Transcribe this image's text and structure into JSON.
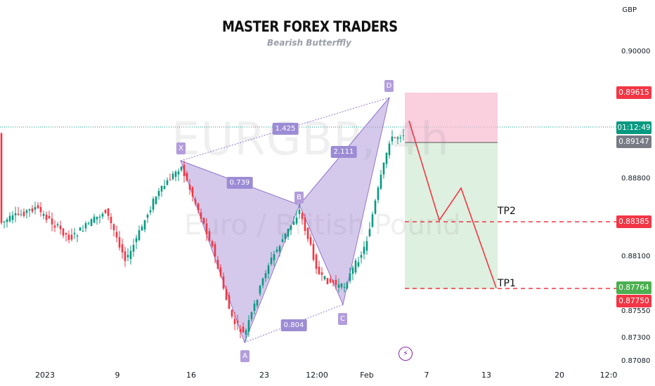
{
  "header": {
    "title": "MASTER FOREX TRADERS",
    "subtitle": "Bearish Butterffly"
  },
  "watermark": {
    "symbol": "EURGBP, 4h",
    "name": "Euro / British Pound"
  },
  "price_axis": {
    "currency": "GBP",
    "ticks": [
      "0.90000",
      "0.88800",
      "0.88100",
      "0.87550",
      "0.87300",
      "0.87080"
    ],
    "labels": [
      {
        "text": "0.89615",
        "color": "#f23645"
      },
      {
        "text": "01:12:49",
        "color": "#089981"
      },
      {
        "text": "0.89147",
        "color": "#787b86"
      },
      {
        "text": "0.88385",
        "color": "#f23645"
      },
      {
        "text": "0.87764",
        "color": "#4caf50"
      },
      {
        "text": "0.87750",
        "color": "#f23645"
      }
    ]
  },
  "time_axis": {
    "ticks": [
      "2023",
      "9",
      "16",
      "23",
      "12:00",
      "Feb",
      "7",
      "13",
      "20",
      "12:0"
    ]
  },
  "pattern": {
    "points": [
      "X",
      "A",
      "B",
      "C",
      "D"
    ],
    "ratios": [
      "1.425",
      "0.739",
      "2.111",
      "0.804"
    ],
    "fill_color": "#b39ddb"
  },
  "trade": {
    "targets": [
      "TP2",
      "TP1"
    ],
    "stop_color": "#f8bbd0",
    "target_color": "#c8e6c9",
    "path_color": "#f23645"
  },
  "icons": {
    "lightning": "lightning-icon"
  },
  "colors": {
    "bull": "#089981",
    "bear": "#f23645",
    "accent": "#089981"
  }
}
